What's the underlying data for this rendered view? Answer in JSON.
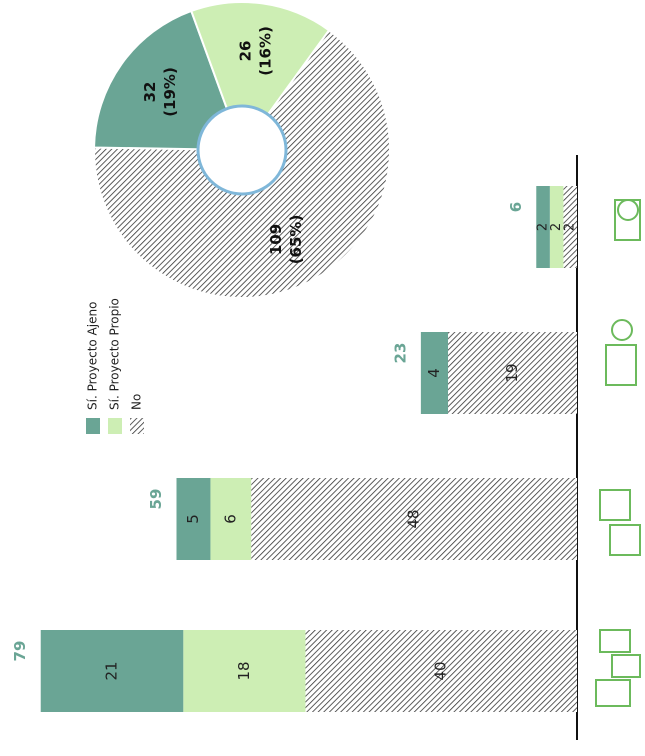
{
  "chart_data": [
    {
      "type": "bar",
      "categories": [
        null,
        null,
        null,
        null
      ],
      "series": [
        {
          "name": "Sí. Proyecto Ajeno",
          "color": "#6aa595",
          "values": [
            21,
            5,
            4,
            2
          ]
        },
        {
          "name": "Sí. Proyecto Propio",
          "color": "#cdeeb4",
          "values": [
            18,
            6,
            0,
            2
          ]
        },
        {
          "name": "No",
          "color": "hatch",
          "values": [
            40,
            48,
            19,
            2
          ]
        }
      ],
      "totals": [
        79,
        59,
        23,
        6
      ],
      "ylim": [
        0,
        85
      ]
    },
    {
      "type": "pie",
      "values": [
        32,
        26,
        109
      ],
      "value_labels": [
        "32",
        "26",
        "109"
      ],
      "percent_labels": [
        "(19%)",
        "(16%)",
        "(65%)"
      ],
      "colors": [
        "#6aa595",
        "#cdeeb4",
        "hatch"
      ]
    }
  ]
}
